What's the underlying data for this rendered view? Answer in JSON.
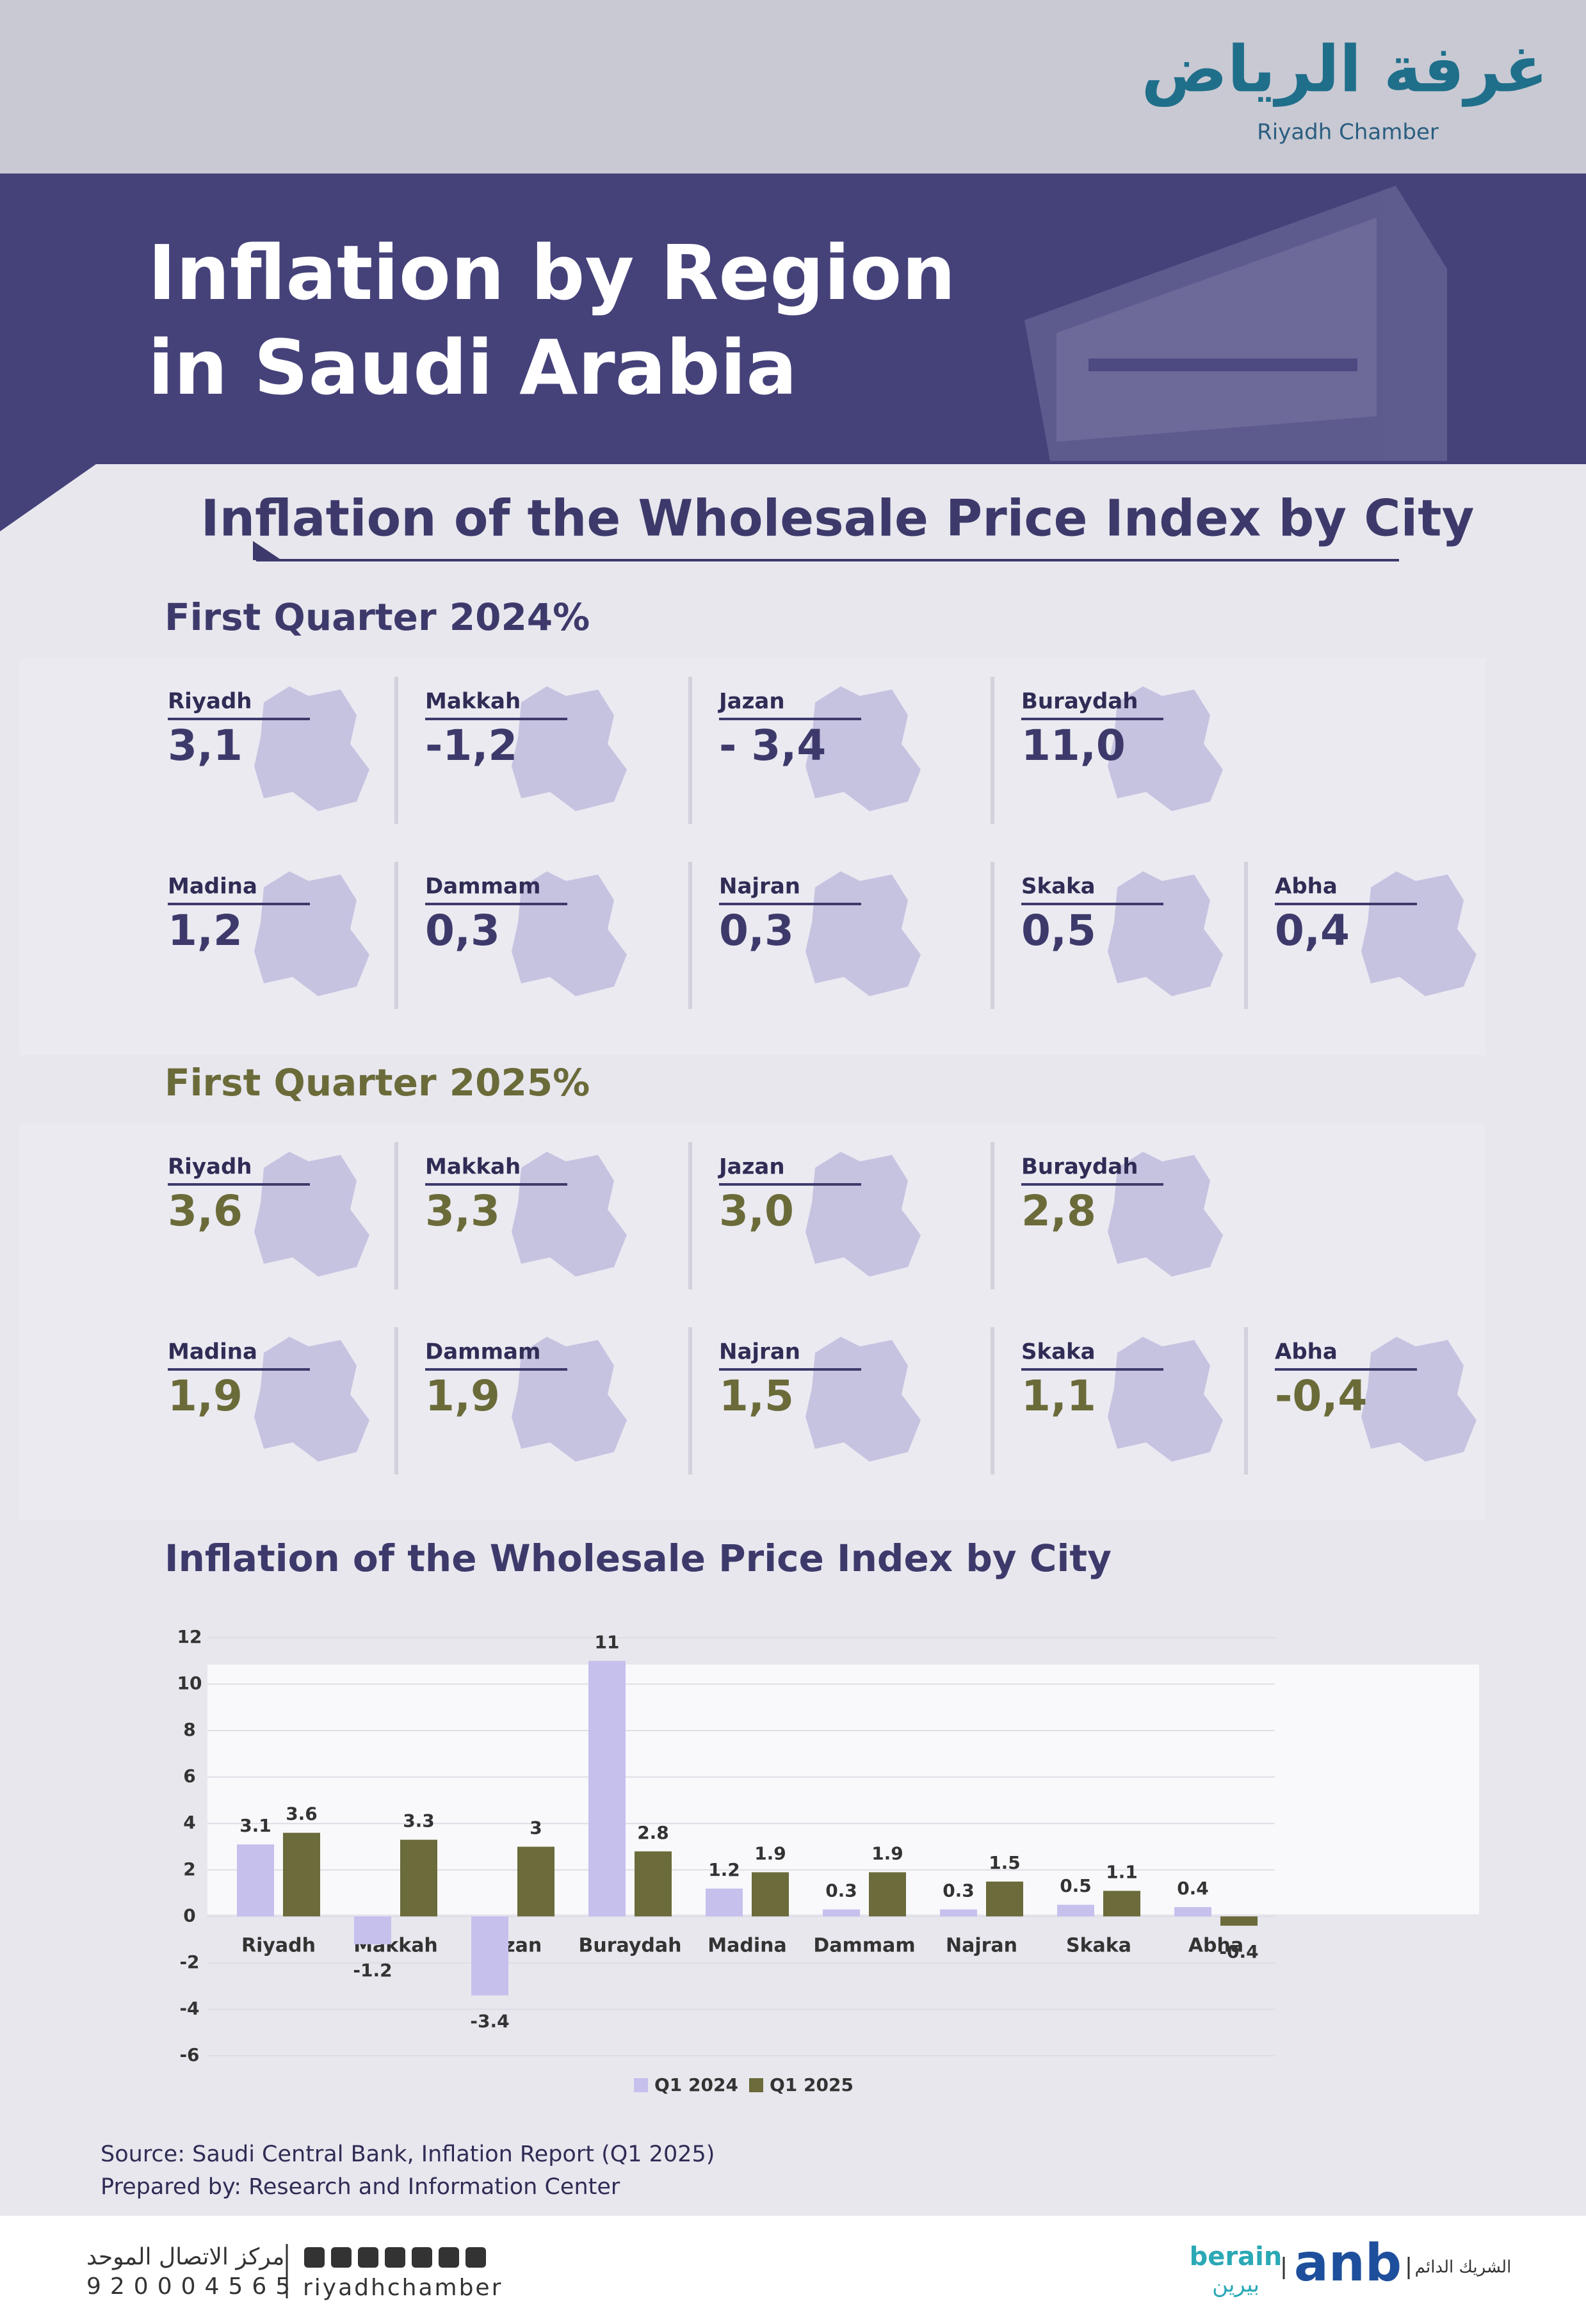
{
  "header": {
    "logo_arabic": "غرفة الرياض",
    "logo": "Riyadh Chamber",
    "title_lines": [
      "Inflation by Region",
      "in Saudi Arabia"
    ]
  },
  "heading": "Inflation of the Wholesale Price Index by City",
  "quarters": [
    {
      "title": "First Quarter 2024%",
      "cities": [
        {
          "name": "Riyadh",
          "value": "3,1"
        },
        {
          "name": "Makkah",
          "value": "-1,2"
        },
        {
          "name": "Jazan",
          "value": "- 3,4"
        },
        {
          "name": "Buraydah",
          "value": "11,0"
        },
        {
          "name": "Madina",
          "value": "1,2"
        },
        {
          "name": "Dammam",
          "value": "0,3"
        },
        {
          "name": "Najran",
          "value": "0,3"
        },
        {
          "name": "Skaka",
          "value": "0,5"
        },
        {
          "name": "Abha",
          "value": "0,4"
        }
      ]
    },
    {
      "title": "First Quarter 2025%",
      "cities": [
        {
          "name": "Riyadh",
          "value": "3,6"
        },
        {
          "name": "Makkah",
          "value": "3,3"
        },
        {
          "name": "Jazan",
          "value": "3,0"
        },
        {
          "name": "Buraydah",
          "value": "2,8"
        },
        {
          "name": "Madina",
          "value": "1,9"
        },
        {
          "name": "Dammam",
          "value": "1,9"
        },
        {
          "name": "Najran",
          "value": "1,5"
        },
        {
          "name": "Skaka",
          "value": "1,1"
        },
        {
          "name": "Abha",
          "value": "-0,4"
        }
      ]
    }
  ],
  "chart_data": {
    "type": "bar",
    "title": "Inflation of the Wholesale Price Index by City",
    "categories": [
      "Riyadh",
      "Makkah",
      "Jazan",
      "Buraydah",
      "Madina",
      "Dammam",
      "Najran",
      "Skaka",
      "Abha"
    ],
    "series": [
      {
        "name": "Q1 2024",
        "color": "#c5c0ec",
        "values": [
          3.1,
          -1.2,
          -3.4,
          11,
          1.2,
          0.3,
          0.3,
          0.5,
          0.4
        ]
      },
      {
        "name": "Q1 2025",
        "color": "#6b6b3b",
        "values": [
          3.6,
          3.3,
          3,
          2.8,
          1.9,
          1.9,
          1.5,
          1.1,
          -0.4
        ]
      }
    ],
    "ylim": [
      -6,
      12
    ],
    "yticks": [
      12,
      10,
      8,
      6,
      4,
      2,
      0,
      -2,
      -4,
      -6
    ],
    "grid": true
  },
  "source": [
    "Source: Saudi Central Bank, Inflation Report (Q1 2025)",
    "Prepared by: Research and Information Center"
  ],
  "footer": {
    "contact_arabic": "مركز الاتصال الموحد",
    "phone": "920004565",
    "handle": "riyadhchamber",
    "partner1": "berain",
    "partner1_arabic": "بيرين",
    "partner2": "anb",
    "partner_label": "الشريك الدائم"
  }
}
